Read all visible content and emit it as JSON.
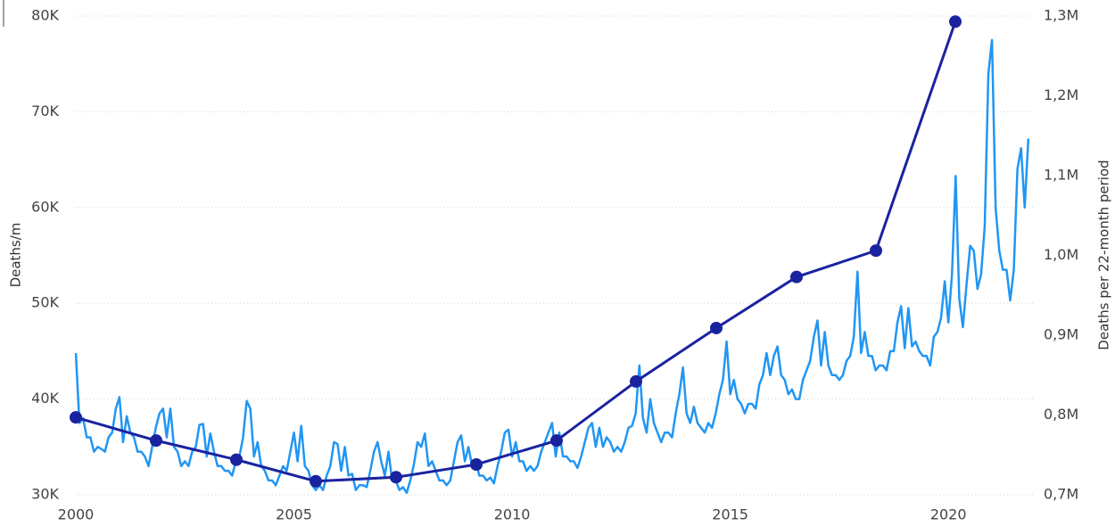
{
  "chart_data": {
    "type": "line",
    "y_label": "Deaths/m",
    "y2_label": "Deaths per 22-month period",
    "xlim": [
      2000,
      2022
    ],
    "xticks": [
      2000,
      2005,
      2010,
      2015,
      2020
    ],
    "ylim": [
      30,
      80
    ],
    "yticks": [
      {
        "value": 30,
        "label": "30K"
      },
      {
        "value": 40,
        "label": "40K"
      },
      {
        "value": 50,
        "label": "50K"
      },
      {
        "value": 60,
        "label": "60K"
      },
      {
        "value": 70,
        "label": "70K"
      },
      {
        "value": 80,
        "label": "80K"
      }
    ],
    "y2lim": [
      0.7,
      1.3
    ],
    "y2ticks": [
      {
        "value": 0.7,
        "label": "0,7M"
      },
      {
        "value": 0.8,
        "label": "0,8M"
      },
      {
        "value": 0.9,
        "label": "0,9M"
      },
      {
        "value": 1.0,
        "label": "1,0M"
      },
      {
        "value": 1.1,
        "label": "1,1M"
      },
      {
        "value": 1.2,
        "label": "1,2M"
      },
      {
        "value": 1.3,
        "label": "1,3M"
      }
    ],
    "grid": true,
    "series": [
      {
        "color": "#2196f3",
        "axis": "y",
        "markers": false,
        "x": [
          2000,
          2000.083,
          2000.167,
          2000.25,
          2000.333,
          2000.417,
          2000.5,
          2000.583,
          2000.667,
          2000.75,
          2000.833,
          2000.917,
          2001,
          2001.083,
          2001.167,
          2001.25,
          2001.333,
          2001.417,
          2001.5,
          2001.583,
          2001.667,
          2001.75,
          2001.833,
          2001.917,
          2002,
          2002.083,
          2002.167,
          2002.25,
          2002.333,
          2002.417,
          2002.5,
          2002.583,
          2002.667,
          2002.75,
          2002.833,
          2002.917,
          2003,
          2003.083,
          2003.167,
          2003.25,
          2003.333,
          2003.417,
          2003.5,
          2003.583,
          2003.667,
          2003.75,
          2003.833,
          2003.917,
          2004,
          2004.083,
          2004.167,
          2004.25,
          2004.333,
          2004.417,
          2004.5,
          2004.583,
          2004.667,
          2004.75,
          2004.833,
          2004.917,
          2005,
          2005.083,
          2005.167,
          2005.25,
          2005.333,
          2005.417,
          2005.5,
          2005.583,
          2005.667,
          2005.75,
          2005.833,
          2005.917,
          2006,
          2006.083,
          2006.167,
          2006.25,
          2006.333,
          2006.417,
          2006.5,
          2006.583,
          2006.667,
          2006.75,
          2006.833,
          2006.917,
          2007,
          2007.083,
          2007.167,
          2007.25,
          2007.333,
          2007.417,
          2007.5,
          2007.583,
          2007.667,
          2007.75,
          2007.833,
          2007.917,
          2008,
          2008.083,
          2008.167,
          2008.25,
          2008.333,
          2008.417,
          2008.5,
          2008.583,
          2008.667,
          2008.75,
          2008.833,
          2008.917,
          2009,
          2009.083,
          2009.167,
          2009.25,
          2009.333,
          2009.417,
          2009.5,
          2009.583,
          2009.667,
          2009.75,
          2009.833,
          2009.917,
          2010,
          2010.083,
          2010.167,
          2010.25,
          2010.333,
          2010.417,
          2010.5,
          2010.583,
          2010.667,
          2010.75,
          2010.833,
          2010.917,
          2011,
          2011.083,
          2011.167,
          2011.25,
          2011.333,
          2011.417,
          2011.5,
          2011.583,
          2011.667,
          2011.75,
          2011.833,
          2011.917,
          2012,
          2012.083,
          2012.167,
          2012.25,
          2012.333,
          2012.417,
          2012.5,
          2012.583,
          2012.667,
          2012.75,
          2012.833,
          2012.917,
          2013,
          2013.083,
          2013.167,
          2013.25,
          2013.333,
          2013.417,
          2013.5,
          2013.583,
          2013.667,
          2013.75,
          2013.833,
          2013.917,
          2014,
          2014.083,
          2014.167,
          2014.25,
          2014.333,
          2014.417,
          2014.5,
          2014.583,
          2014.667,
          2014.75,
          2014.833,
          2014.917,
          2015,
          2015.083,
          2015.167,
          2015.25,
          2015.333,
          2015.417,
          2015.5,
          2015.583,
          2015.667,
          2015.75,
          2015.833,
          2015.917,
          2016,
          2016.083,
          2016.167,
          2016.25,
          2016.333,
          2016.417,
          2016.5,
          2016.583,
          2016.667,
          2016.75,
          2016.833,
          2016.917,
          2017,
          2017.083,
          2017.167,
          2017.25,
          2017.333,
          2017.417,
          2017.5,
          2017.583,
          2017.667,
          2017.75,
          2017.833,
          2017.917,
          2018,
          2018.083,
          2018.167,
          2018.25,
          2018.333,
          2018.417,
          2018.5,
          2018.583,
          2018.667,
          2018.75,
          2018.833,
          2018.917,
          2019,
          2019.083,
          2019.167,
          2019.25,
          2019.333,
          2019.417,
          2019.5,
          2019.583,
          2019.667,
          2019.75,
          2019.833,
          2019.917,
          2020,
          2020.083,
          2020.167,
          2020.25,
          2020.333,
          2020.417,
          2020.5,
          2020.583,
          2020.667,
          2020.75,
          2020.833,
          2020.917,
          2021,
          2021.083,
          2021.167,
          2021.25,
          2021.333,
          2021.417,
          2021.5,
          2021.583,
          2021.667,
          2021.75,
          2021.833
        ],
        "values": [
          44.8,
          37.5,
          38,
          36,
          36,
          34.5,
          35,
          34.8,
          34.5,
          36,
          36.5,
          39,
          40.2,
          35.5,
          38.2,
          36.5,
          36,
          34.5,
          34.5,
          34,
          33,
          35,
          37,
          38.5,
          39,
          36,
          39,
          35,
          34.5,
          33,
          33.5,
          33,
          34.5,
          35,
          37.3,
          37.4,
          34,
          36.4,
          34.5,
          33,
          33,
          32.5,
          32.5,
          32,
          33.5,
          34,
          36,
          39.8,
          39,
          34,
          35.5,
          33,
          32.5,
          31.5,
          31.5,
          31,
          32,
          33,
          32.5,
          34.5,
          36.5,
          33.5,
          37.2,
          33,
          32.5,
          31,
          30.5,
          31,
          30.5,
          32,
          33,
          35.5,
          35.3,
          32.5,
          35,
          32,
          32.2,
          30.5,
          31,
          31,
          30.8,
          32.5,
          34.5,
          35.5,
          33.5,
          32,
          34.5,
          31.5,
          31.5,
          30.5,
          30.8,
          30.2,
          31.5,
          33.2,
          35.5,
          35,
          36.4,
          33,
          33.5,
          32.5,
          31.5,
          31.5,
          31,
          31.5,
          33.5,
          35.5,
          36.2,
          33.5,
          35,
          33,
          33.5,
          32,
          32,
          31.5,
          31.8,
          31.2,
          33,
          34.5,
          36.5,
          36.8,
          34,
          35.5,
          33.5,
          33.5,
          32.5,
          33,
          32.5,
          33,
          34.5,
          35.5,
          36.5,
          37.5,
          34,
          36.5,
          34,
          34,
          33.5,
          33.5,
          32.8,
          34,
          35.5,
          37,
          37.5,
          35,
          37,
          35,
          36,
          35.5,
          34.5,
          35,
          34.5,
          35.5,
          37,
          37.2,
          38.5,
          43.5,
          38,
          36.5,
          40,
          37.5,
          36.5,
          35.5,
          36.5,
          36.5,
          36,
          38.5,
          40.5,
          43.3,
          38.5,
          37.5,
          39.2,
          37.5,
          37,
          36.5,
          37.5,
          37,
          38.5,
          40.5,
          42,
          46,
          40.5,
          42,
          40,
          39.5,
          38.5,
          39.5,
          39.5,
          39,
          41.5,
          42.5,
          44.8,
          42.5,
          44.5,
          45.5,
          42.5,
          42,
          40.5,
          41,
          40,
          40,
          42,
          43,
          44,
          46.5,
          48.2,
          43.5,
          47,
          43.5,
          42.5,
          42.5,
          42,
          42.5,
          44,
          44.5,
          46.5,
          53.3,
          44.8,
          47,
          44.5,
          44.5,
          43,
          43.5,
          43.5,
          43,
          45,
          45,
          48,
          49.7,
          45.3,
          49.5,
          45.5,
          46,
          45,
          44.5,
          44.5,
          43.5,
          46.5,
          47,
          48.5,
          52.3,
          48,
          53,
          63.3,
          50.5,
          47.5,
          52,
          56,
          55.5,
          51.5,
          53,
          58,
          74,
          77.5,
          60,
          55.5,
          53.5,
          53.5,
          50.3,
          53.5,
          64,
          66.2,
          60,
          67.2
        ]
      },
      {
        "color": "#1a239f",
        "axis": "y2",
        "markers": true,
        "x": [
          2000,
          2001.84,
          2003.68,
          2005.5,
          2007.34,
          2009.18,
          2011.02,
          2012.84,
          2014.68,
          2016.52,
          2018.34,
          2020.16
        ],
        "values": [
          0.797,
          0.768,
          0.744,
          0.717,
          0.722,
          0.738,
          0.768,
          0.842,
          0.909,
          0.973,
          1.006,
          1.293
        ]
      }
    ]
  }
}
